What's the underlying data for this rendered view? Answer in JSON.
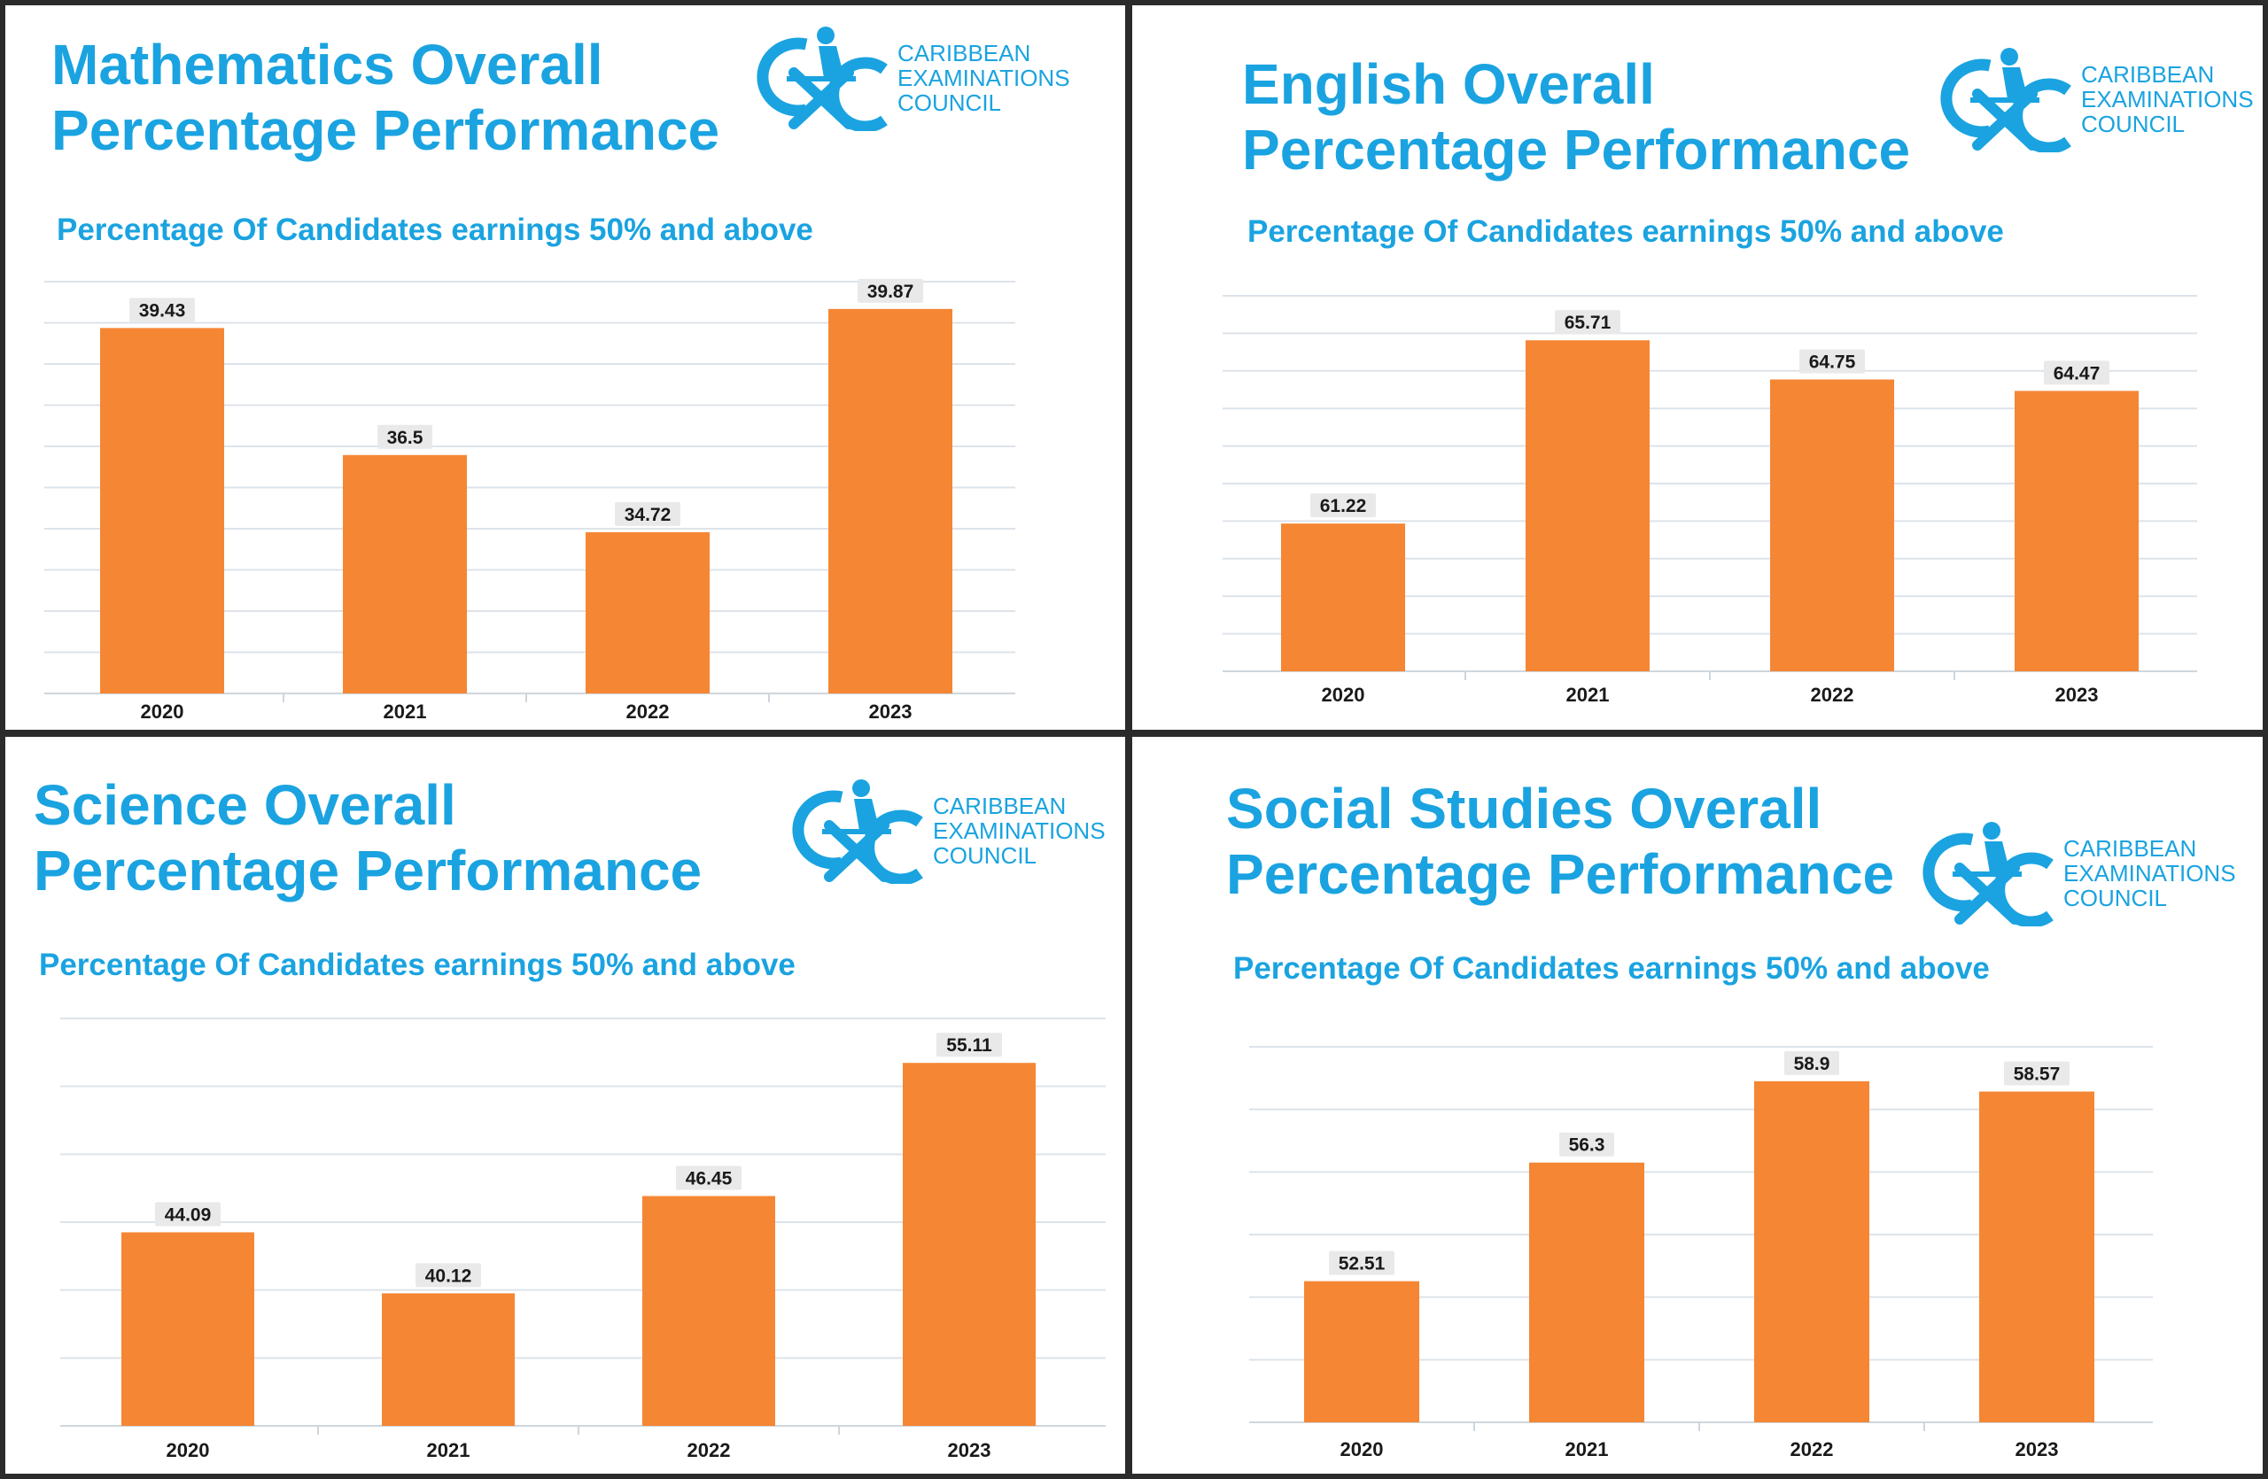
{
  "colors": {
    "title": "#1aa3e0",
    "bar": "#f58634",
    "frame": "#2b2b2b",
    "grid": "#dde3ea"
  },
  "logo": {
    "line1": "CARIBBEAN",
    "line2": "EXAMINATIONS",
    "line3": "COUNCIL",
    "icon": "cxc-logo-icon"
  },
  "panels": [
    {
      "title_line1": "Mathematics Overall",
      "title_line2": "Percentage Performance",
      "subtitle": "Percentage Of Candidates earnings 50% and above"
    },
    {
      "title_line1": "English Overall",
      "title_line2": "Percentage Performance",
      "subtitle": "Percentage Of Candidates earnings 50% and above"
    },
    {
      "title_line1": "Science Overall",
      "title_line2": "Percentage Performance",
      "subtitle": "Percentage Of Candidates earnings 50% and above"
    },
    {
      "title_line1": "Social Studies Overall",
      "title_line2": "Percentage Performance",
      "subtitle": "Percentage Of Candidates earnings 50% and above"
    }
  ],
  "chart_data": [
    {
      "type": "bar",
      "title": "Mathematics Overall Percentage Performance",
      "subtitle": "Percentage Of Candidates earnings 50% and above",
      "categories": [
        "2020",
        "2021",
        "2022",
        "2023"
      ],
      "values": [
        39.43,
        36.5,
        34.72,
        39.87
      ],
      "value_labels": [
        "39.43",
        "36.5",
        "34.72",
        "39.87"
      ],
      "ylim": [
        31,
        40.5
      ],
      "grid": true,
      "xlabel": "",
      "ylabel": ""
    },
    {
      "type": "bar",
      "title": "English Overall Percentage Performance",
      "subtitle": "Percentage Of Candidates earnings 50% and above",
      "categories": [
        "2020",
        "2021",
        "2022",
        "2023"
      ],
      "values": [
        61.22,
        65.71,
        64.75,
        64.47
      ],
      "value_labels": [
        "61.22",
        "65.71",
        "64.75",
        "64.47"
      ],
      "ylim": [
        57.6,
        66.8
      ],
      "grid": true,
      "xlabel": "",
      "ylabel": ""
    },
    {
      "type": "bar",
      "title": "Science Overall Percentage Performance",
      "subtitle": "Percentage Of Candidates earnings 50% and above",
      "categories": [
        "2020",
        "2021",
        "2022",
        "2023"
      ],
      "values": [
        44.09,
        40.12,
        46.45,
        55.11
      ],
      "value_labels": [
        "44.09",
        "40.12",
        "46.45",
        "55.11"
      ],
      "ylim": [
        31.5,
        58
      ],
      "grid": true,
      "xlabel": "",
      "ylabel": ""
    },
    {
      "type": "bar",
      "title": "Social Studies Overall Percentage Performance",
      "subtitle": "Percentage Of Candidates earnings 50% and above",
      "categories": [
        "2020",
        "2021",
        "2022",
        "2023"
      ],
      "values": [
        52.51,
        56.3,
        58.9,
        58.57
      ],
      "value_labels": [
        "52.51",
        "56.3",
        "58.9",
        "58.57"
      ],
      "ylim": [
        48,
        60
      ],
      "grid": true,
      "xlabel": "",
      "ylabel": ""
    }
  ]
}
